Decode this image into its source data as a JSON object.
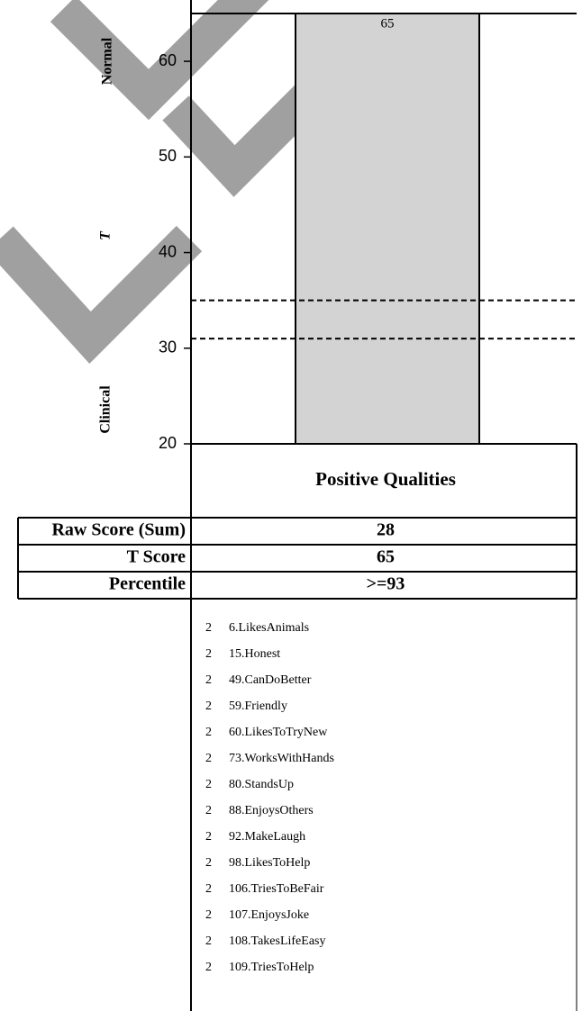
{
  "chart_data": {
    "type": "bar",
    "categories": [
      "Positive Qualities"
    ],
    "values": [
      65
    ],
    "color": "#d3d3d3",
    "ylim": [
      20,
      65
    ],
    "yticks": [
      20,
      30,
      40,
      50,
      60
    ],
    "reference_lines": [
      35,
      31
    ],
    "axis_labels": {
      "top": "Normal",
      "middle": "T",
      "bottom": "Clinical"
    }
  },
  "table": {
    "rows": [
      {
        "label": "Raw Score (Sum)",
        "value": 28
      },
      {
        "label": "T Score",
        "value": 65
      },
      {
        "label": "Percentile",
        "value": ">=93"
      }
    ]
  },
  "items": [
    {
      "score": 2,
      "name": "6.LikesAnimals"
    },
    {
      "score": 2,
      "name": "15.Honest"
    },
    {
      "score": 2,
      "name": "49.CanDoBetter"
    },
    {
      "score": 2,
      "name": "59.Friendly"
    },
    {
      "score": 2,
      "name": "60.LikesToTryNew"
    },
    {
      "score": 2,
      "name": "73.WorksWithHands"
    },
    {
      "score": 2,
      "name": "80.StandsUp"
    },
    {
      "score": 2,
      "name": "88.EnjoysOthers"
    },
    {
      "score": 2,
      "name": "92.MakeLaugh"
    },
    {
      "score": 2,
      "name": "98.LikesToHelp"
    },
    {
      "score": 2,
      "name": "106.TriesToBeFair"
    },
    {
      "score": 2,
      "name": "107.EnjoysJoke"
    },
    {
      "score": 2,
      "name": "108.TakesLifeEasy"
    },
    {
      "score": 2,
      "name": "109.TriesToHelp"
    }
  ]
}
